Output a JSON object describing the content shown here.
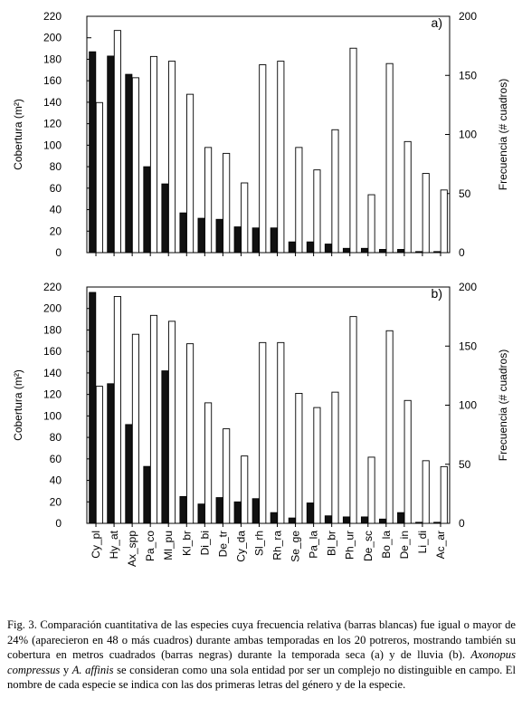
{
  "chart_data": [
    {
      "type": "bar",
      "panel_label": "a)",
      "categories": [
        "Cy_pl",
        "Hy_at",
        "Ax_spp",
        "Pa_co",
        "Ml_pu",
        "Kl_br",
        "Di_bi",
        "De_tr",
        "Cy_da",
        "Sl_rh",
        "Rh_ra",
        "Se_ge",
        "Pa_la",
        "Bl_br",
        "Ph_ur",
        "De_sc",
        "Bo_la",
        "De_in",
        "Li_di",
        "Ac_ar"
      ],
      "ylabel": "Cobertura (m²)",
      "y2label": "Frecuencia (# cuadros)",
      "ylim": [
        0,
        220
      ],
      "y2lim": [
        0,
        200
      ],
      "yticks": [
        0,
        20,
        40,
        60,
        80,
        100,
        120,
        140,
        160,
        180,
        200,
        220
      ],
      "y2ticks": [
        0,
        50,
        100,
        150,
        200
      ],
      "series": [
        {
          "role": "cobertura",
          "axis": "left",
          "fill": "#111111",
          "values": [
            187,
            183,
            166,
            80,
            64,
            37,
            32,
            31,
            24,
            23,
            23,
            10,
            10,
            8,
            4,
            4,
            3,
            3,
            1,
            1
          ]
        },
        {
          "role": "frecuencia",
          "axis": "right",
          "fill": "#ffffff",
          "values": [
            127,
            188,
            148,
            166,
            162,
            134,
            89,
            84,
            59,
            159,
            162,
            89,
            70,
            104,
            173,
            49,
            160,
            94,
            67,
            53
          ]
        }
      ]
    },
    {
      "type": "bar",
      "panel_label": "b)",
      "categories": [
        "Cy_pl",
        "Hy_at",
        "Ax_spp",
        "Pa_co",
        "Ml_pu",
        "Kl_br",
        "Di_bi",
        "De_tr",
        "Cy_da",
        "Sl_rh",
        "Rh_ra",
        "Se_ge",
        "Pa_la",
        "Bl_br",
        "Ph_ur",
        "De_sc",
        "Bo_la",
        "De_in",
        "Li_di",
        "Ac_ar"
      ],
      "ylabel": "Cobertura (m²)",
      "y2label": "Frecuencia (# cuadros)",
      "ylim": [
        0,
        220
      ],
      "y2lim": [
        0,
        200
      ],
      "yticks": [
        0,
        20,
        40,
        60,
        80,
        100,
        120,
        140,
        160,
        180,
        200,
        220
      ],
      "y2ticks": [
        0,
        50,
        100,
        150,
        200
      ],
      "series": [
        {
          "role": "cobertura",
          "axis": "left",
          "fill": "#111111",
          "values": [
            215,
            130,
            92,
            53,
            142,
            25,
            18,
            24,
            20,
            23,
            10,
            5,
            19,
            7,
            6,
            6,
            4,
            10,
            1,
            1
          ]
        },
        {
          "role": "frecuencia",
          "axis": "right",
          "fill": "#ffffff",
          "values": [
            116,
            192,
            160,
            176,
            171,
            152,
            102,
            80,
            57,
            153,
            153,
            110,
            98,
            111,
            175,
            56,
            163,
            104,
            53,
            48
          ]
        }
      ]
    }
  ],
  "caption": {
    "fig_label": "Fig. 3.",
    "part1": " Comparación cuantitativa de las especies cuya frecuencia relativa (barras blancas) fue igual o mayor de 24% (aparecieron en 48 o más cuadros) durante ambas temporadas en los 20 potreros, mostrando también su cobertura en metros cuadrados (barras negras) durante la temporada seca (a) y de lluvia (b). ",
    "species1": "Axonopus compressus",
    "and": " y ",
    "species2": "A. affinis",
    "part2": " se consideran como una sola entidad por ser un complejo no distinguible en campo. El nombre de cada especie se indica con las dos primeras letras del género y de la especie."
  }
}
